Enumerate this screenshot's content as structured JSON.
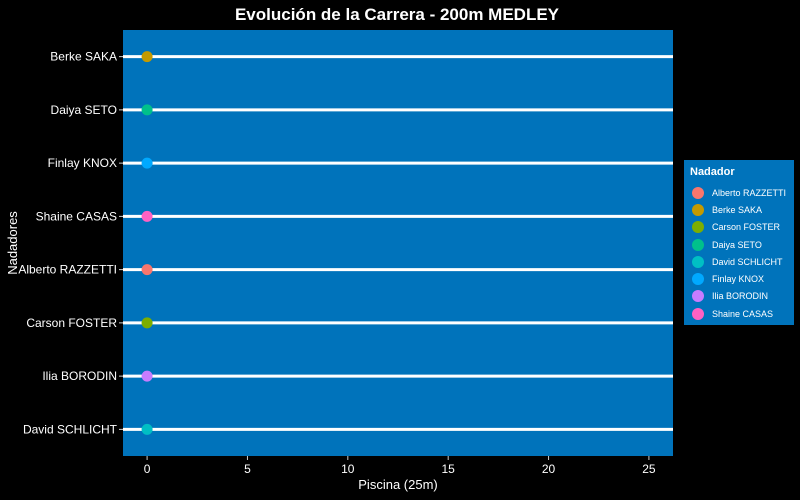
{
  "chart_data": {
    "type": "scatter",
    "title": "Evolución de la Carrera - 200m MEDLEY",
    "xlabel": "Piscina (25m)",
    "ylabel": "Nadadores",
    "xlim": [
      -1.2,
      26.2
    ],
    "xticks": [
      0,
      5,
      10,
      15,
      20,
      25
    ],
    "grid": false,
    "categories": [
      "Berke SAKA",
      "Daiya SETO",
      "Finlay KNOX",
      "Shaine CASAS",
      "Alberto RAZZETTI",
      "Carson FOSTER",
      "Ilia BORODIN",
      "David SCHLICHT"
    ],
    "series": [
      {
        "name": "Berke SAKA",
        "x": 0,
        "y": "Berke SAKA",
        "color": "#C49A00"
      },
      {
        "name": "Daiya SETO",
        "x": 0,
        "y": "Daiya SETO",
        "color": "#00C08B"
      },
      {
        "name": "Finlay KNOX",
        "x": 0,
        "y": "Finlay KNOX",
        "color": "#00A9FF"
      },
      {
        "name": "Shaine CASAS",
        "x": 0,
        "y": "Shaine CASAS",
        "color": "#FF61C3"
      },
      {
        "name": "Alberto RAZZETTI",
        "x": 0,
        "y": "Alberto RAZZETTI",
        "color": "#F8766D"
      },
      {
        "name": "Carson FOSTER",
        "x": 0,
        "y": "Carson FOSTER",
        "color": "#7CAE00"
      },
      {
        "name": "Ilia BORODIN",
        "x": 0,
        "y": "Ilia BORODIN",
        "color": "#C77CFF"
      },
      {
        "name": "David SCHLICHT",
        "x": 0,
        "y": "David SCHLICHT",
        "color": "#00BFC4"
      }
    ],
    "legend": {
      "title": "Nadador",
      "position": "right",
      "entries": [
        {
          "label": "Alberto RAZZETTI",
          "color": "#F8766D"
        },
        {
          "label": "Berke SAKA",
          "color": "#C49A00"
        },
        {
          "label": "Carson FOSTER",
          "color": "#7CAE00"
        },
        {
          "label": "Daiya SETO",
          "color": "#00C08B"
        },
        {
          "label": "David SCHLICHT",
          "color": "#00BFC4"
        },
        {
          "label": "Finlay KNOX",
          "color": "#00A9FF"
        },
        {
          "label": "Ilia BORODIN",
          "color": "#C77CFF"
        },
        {
          "label": "Shaine CASAS",
          "color": "#FF61C3"
        }
      ]
    },
    "colors": {
      "background": "#000000",
      "panel": "#0073BB",
      "lane_line": "#FFFFFF",
      "text": "#FFFFFF"
    }
  }
}
